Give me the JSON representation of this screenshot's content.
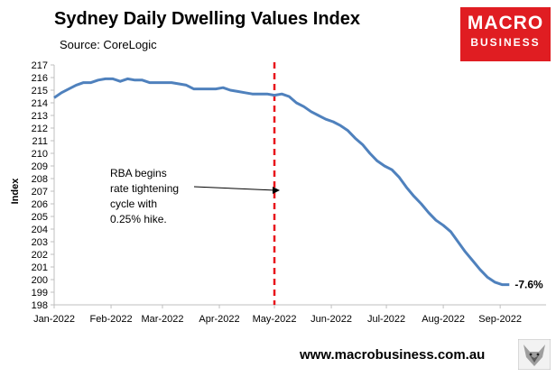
{
  "header": {
    "title": "Sydney Daily Dwelling Values Index",
    "source": "Source: CoreLogic"
  },
  "logo": {
    "line1": "MACRO",
    "line2": "BUSINESS"
  },
  "footer": {
    "website": "www.macrobusiness.com.au"
  },
  "colors": {
    "line": "#4f81bd",
    "marker": "#e8141b",
    "logo_bg": "#e01d22",
    "axis": "#bfbfbf"
  },
  "chart_data": {
    "type": "line",
    "title": "Sydney Daily Dwelling Values Index",
    "xlabel": "",
    "ylabel": "Index",
    "ylim": [
      198,
      217
    ],
    "yticks": [
      198,
      199,
      200,
      201,
      202,
      203,
      204,
      205,
      206,
      207,
      208,
      209,
      210,
      211,
      212,
      213,
      214,
      215,
      216,
      217
    ],
    "xlim": [
      0,
      268
    ],
    "xticks": [
      {
        "label": "Jan-2022",
        "day": 0
      },
      {
        "label": "Feb-2022",
        "day": 31
      },
      {
        "label": "Mar-2022",
        "day": 59
      },
      {
        "label": "Apr-2022",
        "day": 90
      },
      {
        "label": "May-2022",
        "day": 120
      },
      {
        "label": "Jun-2022",
        "day": 151
      },
      {
        "label": "Jul-2022",
        "day": 181
      },
      {
        "label": "Aug-2022",
        "day": 212
      },
      {
        "label": "Sep-2022",
        "day": 243
      }
    ],
    "series": [
      {
        "name": "Sydney Daily Dwelling Values Index",
        "x": [
          0,
          4,
          8,
          12,
          16,
          20,
          24,
          28,
          32,
          36,
          40,
          44,
          48,
          52,
          56,
          60,
          64,
          68,
          72,
          76,
          80,
          84,
          88,
          92,
          96,
          100,
          104,
          108,
          112,
          116,
          120,
          124,
          128,
          132,
          136,
          140,
          144,
          148,
          152,
          156,
          160,
          164,
          168,
          172,
          176,
          180,
          184,
          188,
          192,
          196,
          200,
          204,
          208,
          212,
          216,
          220,
          224,
          228,
          232,
          236,
          240,
          244,
          248
        ],
        "values": [
          214.4,
          214.8,
          215.1,
          215.4,
          215.6,
          215.6,
          215.8,
          215.9,
          215.9,
          215.7,
          215.9,
          215.8,
          215.8,
          215.6,
          215.6,
          215.6,
          215.6,
          215.5,
          215.4,
          215.1,
          215.1,
          215.1,
          215.1,
          215.2,
          215.0,
          214.9,
          214.8,
          214.7,
          214.7,
          214.7,
          214.6,
          214.7,
          214.5,
          214.0,
          213.7,
          213.3,
          213.0,
          212.7,
          212.5,
          212.2,
          211.8,
          211.2,
          210.7,
          210.0,
          209.4,
          209.0,
          208.7,
          208.1,
          207.3,
          206.6,
          206.0,
          205.3,
          204.7,
          204.3,
          203.8,
          203.0,
          202.2,
          201.5,
          200.8,
          200.2,
          199.8,
          199.6,
          199.6
        ]
      }
    ],
    "vertical_marker": {
      "day": 120,
      "style": "dashed"
    },
    "annotations": [
      {
        "lines": [
          "RBA begins",
          "rate tightening",
          "cycle with",
          "0.25% hike."
        ]
      },
      {
        "text": "-7.6%"
      }
    ],
    "grid": false
  }
}
